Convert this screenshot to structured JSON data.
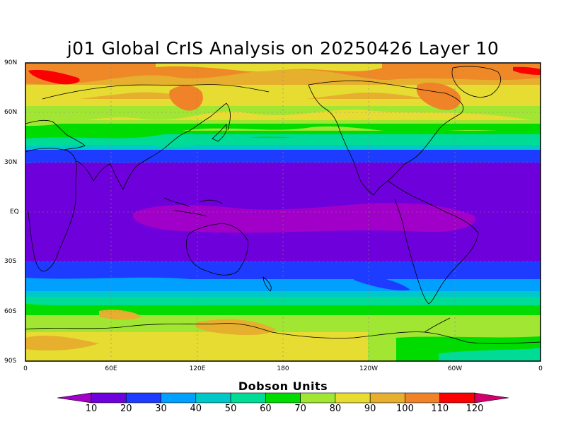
{
  "title": "j01 Global CrIS Analysis on 20250426 Layer 10",
  "colorbar": {
    "label": "Dobson Units",
    "ticks": [
      "10",
      "20",
      "30",
      "40",
      "50",
      "60",
      "70",
      "80",
      "90",
      "100",
      "110",
      "120"
    ],
    "colors": [
      "#a000c8",
      "#6e00dc",
      "#1e3cff",
      "#00a0ff",
      "#00c8c8",
      "#00dc96",
      "#00dc00",
      "#a0e632",
      "#e6dc32",
      "#e6af2d",
      "#f08228",
      "#fa0000",
      "#d2006e"
    ]
  },
  "axes": {
    "lat_labels": [
      "90N",
      "60N",
      "30N",
      "EQ",
      "30S",
      "60S",
      "90S"
    ],
    "lon_labels": [
      "0",
      "60E",
      "120E",
      "180",
      "120W",
      "60W",
      "0"
    ]
  }
}
